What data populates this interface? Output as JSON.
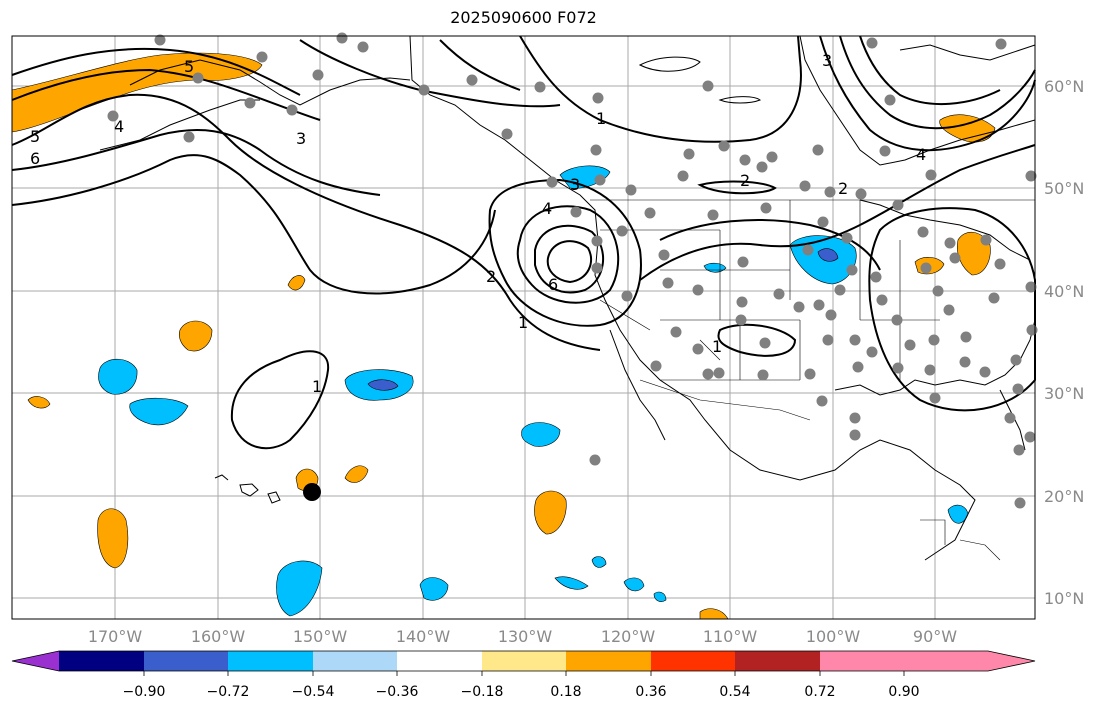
{
  "title": "2025090600 F072",
  "lon_labels": [
    "170°W",
    "160°W",
    "150°W",
    "140°W",
    "130°W",
    "120°W",
    "110°W",
    "100°W",
    "90°W"
  ],
  "lat_labels": [
    "60°N",
    "50°N",
    "40°N",
    "30°N",
    "20°N",
    "10°N"
  ],
  "colorbar": {
    "ticks": [
      "−0.90",
      "−0.72",
      "−0.54",
      "−0.36",
      "−0.18",
      "0.18",
      "0.36",
      "0.54",
      "0.72",
      "0.90"
    ],
    "colors": [
      "#9b30d0",
      "#000080",
      "#3a5fcd",
      "#00bfff",
      "#add8f7",
      "#ffffff",
      "#ffe88a",
      "#ffa500",
      "#ff3300",
      "#b22222",
      "#ff88aa"
    ]
  },
  "contour_labels": [
    "5",
    "4",
    "5",
    "6",
    "3",
    "3",
    "1",
    "2",
    "2",
    "4",
    "3",
    "6",
    "4",
    "2",
    "1",
    "1",
    "1"
  ],
  "colors": {
    "negative": "#00bfff",
    "negative_strong": "#3a5fcd",
    "positive": "#ffa500",
    "station": "#808080"
  }
}
